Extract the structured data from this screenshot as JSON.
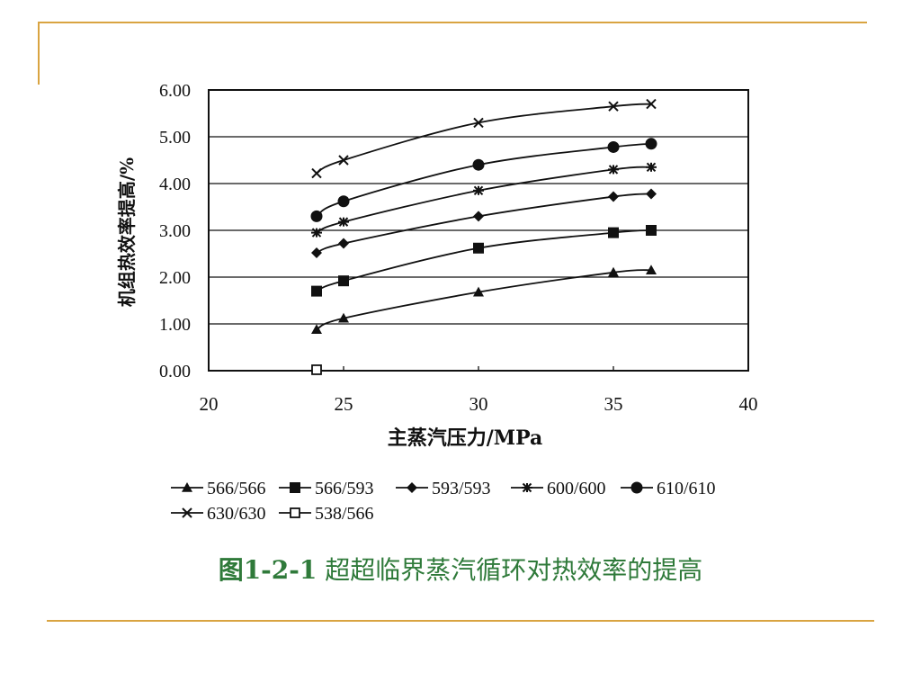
{
  "colors": {
    "rule": "#d9a441",
    "caption": "#2f7a3a",
    "ink": "#111111"
  },
  "chart_data": {
    "type": "line",
    "xlabel": "主蒸汽压力/MPa",
    "ylabel": "机组热效率提高/%",
    "xlim": [
      20,
      40
    ],
    "ylim": [
      0,
      6
    ],
    "xticks": [
      "20",
      "25",
      "30",
      "35",
      "40"
    ],
    "yticks": [
      "0.00",
      "1.00",
      "2.00",
      "3.00",
      "4.00",
      "5.00",
      "6.00"
    ],
    "grid": "horizontal",
    "legend_position": "bottom",
    "series": [
      {
        "name": "566/566",
        "marker": "triangle",
        "x": [
          24,
          25,
          30,
          35,
          36.4
        ],
        "values": [
          0.88,
          1.12,
          1.68,
          2.1,
          2.15
        ]
      },
      {
        "name": "566/593",
        "marker": "square",
        "x": [
          24,
          25,
          30,
          35,
          36.4
        ],
        "values": [
          1.7,
          1.92,
          2.62,
          2.95,
          3.0
        ]
      },
      {
        "name": "593/593",
        "marker": "diamond",
        "x": [
          24,
          25,
          30,
          35,
          36.4
        ],
        "values": [
          2.52,
          2.72,
          3.3,
          3.72,
          3.78
        ]
      },
      {
        "name": "600/600",
        "marker": "asterisk",
        "x": [
          24,
          25,
          30,
          35,
          36.4
        ],
        "values": [
          2.95,
          3.18,
          3.85,
          4.3,
          4.35
        ]
      },
      {
        "name": "610/610",
        "marker": "circle",
        "x": [
          24,
          25,
          30,
          35,
          36.4
        ],
        "values": [
          3.3,
          3.62,
          4.4,
          4.78,
          4.85
        ]
      },
      {
        "name": "630/630",
        "marker": "x",
        "x": [
          24,
          25,
          30,
          35,
          36.4
        ],
        "values": [
          4.22,
          4.5,
          5.3,
          5.65,
          5.7
        ]
      },
      {
        "name": "538/566",
        "marker": "open-square",
        "x": [
          24
        ],
        "values": [
          0.02
        ]
      }
    ]
  },
  "caption": {
    "prefix": "图1-2-1",
    "text": "超超临界蒸汽循环对热效率的提高"
  }
}
